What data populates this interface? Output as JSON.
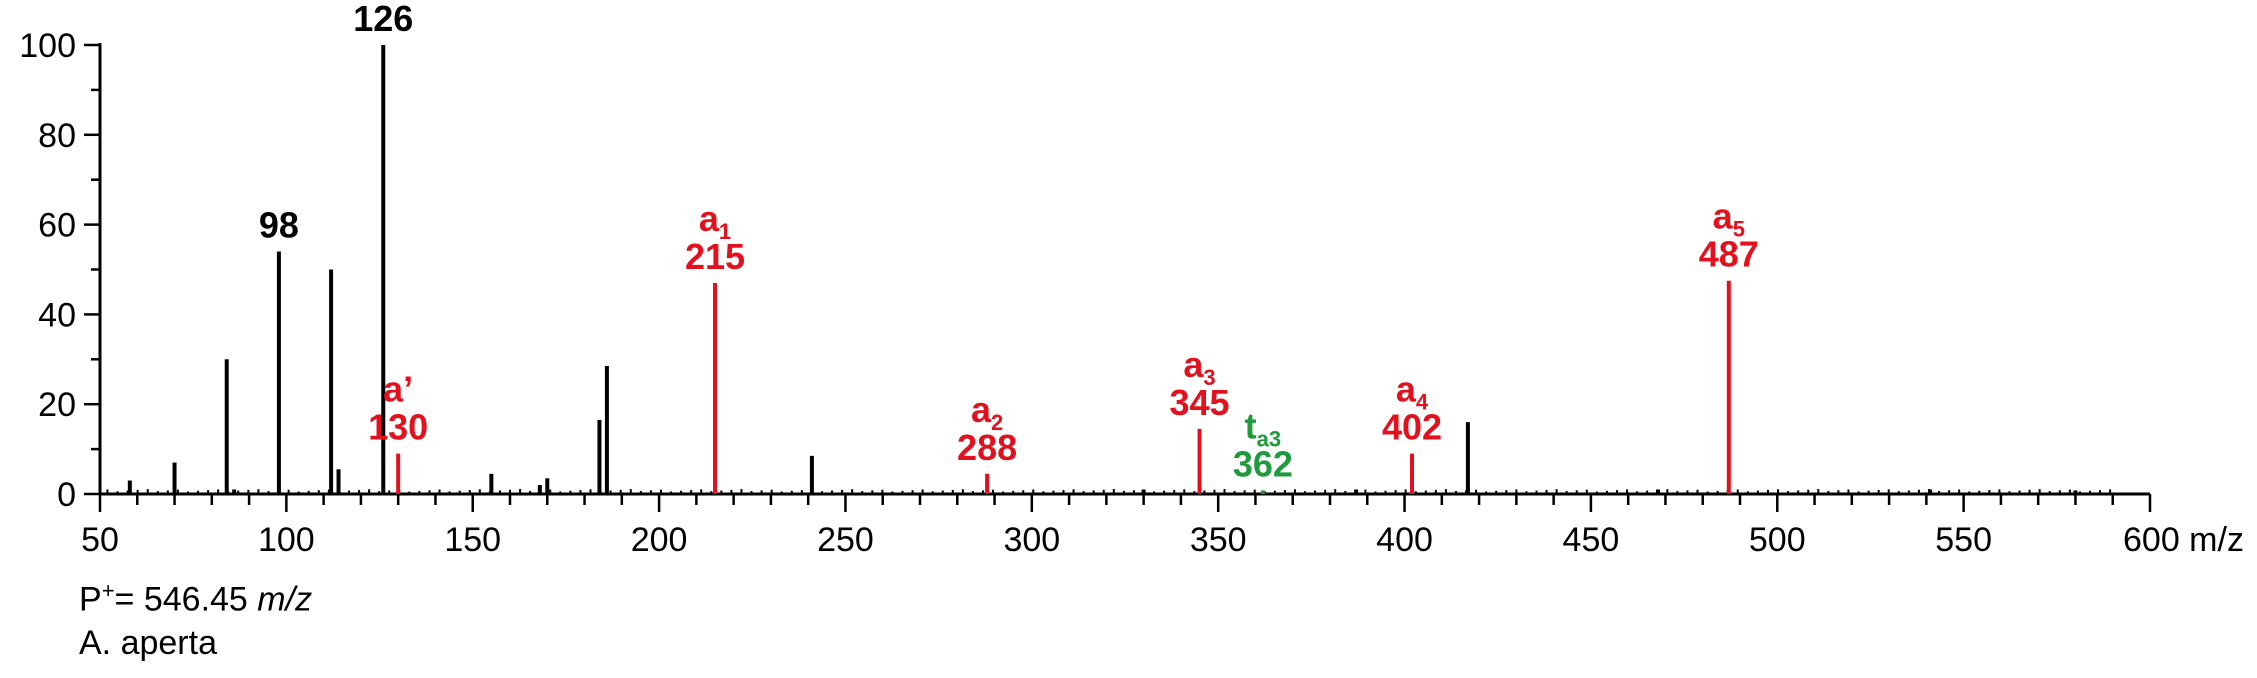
{
  "chart_data": {
    "type": "bar",
    "xlim": [
      50,
      600
    ],
    "ylim": [
      0,
      100
    ],
    "x_ticks": [
      50,
      100,
      150,
      200,
      250,
      300,
      350,
      400,
      450,
      500,
      550,
      600
    ],
    "x_tick_labels": [
      "50",
      "100",
      "150",
      "200",
      "250",
      "300",
      "350",
      "400",
      "450",
      "500",
      "550",
      "600 m/z"
    ],
    "y_ticks": [
      0,
      20,
      40,
      60,
      80,
      100
    ],
    "y_tick_labels": [
      "0",
      "20",
      "40",
      "60",
      "80",
      "100"
    ],
    "grid": false,
    "colors": {
      "black": "#000000",
      "red": "#e3101e",
      "green": "#1f9a3c"
    },
    "series": [
      {
        "color": "black",
        "peaks": [
          {
            "x": 58,
            "y": 3
          },
          {
            "x": 70,
            "y": 7
          },
          {
            "x": 84,
            "y": 30
          },
          {
            "x": 86,
            "y": 1
          },
          {
            "x": 98,
            "y": 54
          },
          {
            "x": 112,
            "y": 50
          },
          {
            "x": 114,
            "y": 5.5
          },
          {
            "x": 126,
            "y": 100
          },
          {
            "x": 155,
            "y": 4.5
          },
          {
            "x": 168,
            "y": 2
          },
          {
            "x": 170,
            "y": 3.5
          },
          {
            "x": 184,
            "y": 16.5
          },
          {
            "x": 186,
            "y": 28.5
          },
          {
            "x": 241,
            "y": 8.5
          },
          {
            "x": 330,
            "y": 1
          },
          {
            "x": 387,
            "y": 1
          },
          {
            "x": 417,
            "y": 16
          },
          {
            "x": 468,
            "y": 1
          },
          {
            "x": 541,
            "y": 1
          },
          {
            "x": 580,
            "y": 0.8
          }
        ]
      },
      {
        "color": "red",
        "peaks": [
          {
            "x": 130,
            "y": 9
          },
          {
            "x": 215,
            "y": 47
          },
          {
            "x": 288,
            "y": 4.5
          },
          {
            "x": 345,
            "y": 14.5
          },
          {
            "x": 402,
            "y": 9
          },
          {
            "x": 487,
            "y": 47.5
          }
        ]
      },
      {
        "color": "green",
        "peaks": [
          {
            "x": 362,
            "y": 0.8
          }
        ]
      }
    ],
    "annotations": [
      {
        "x": 98,
        "y": 54,
        "color": "black",
        "lines": [
          {
            "text": "98"
          }
        ]
      },
      {
        "x": 126,
        "y": 100,
        "color": "black",
        "lines": [
          {
            "text": "126"
          }
        ]
      },
      {
        "x": 130,
        "y": 9,
        "color": "red",
        "lines": [
          {
            "text": "a’"
          },
          {
            "text": "130"
          }
        ]
      },
      {
        "x": 215,
        "y": 47,
        "color": "red",
        "lines": [
          {
            "text": "a",
            "sub": "1"
          },
          {
            "text": "215"
          }
        ]
      },
      {
        "x": 288,
        "y": 4.5,
        "color": "red",
        "lines": [
          {
            "text": "a",
            "sub": "2"
          },
          {
            "text": "288"
          }
        ]
      },
      {
        "x": 345,
        "y": 14.5,
        "color": "red",
        "lines": [
          {
            "text": "a",
            "sub": "3"
          },
          {
            "text": "345"
          }
        ]
      },
      {
        "x": 362,
        "y": 0.8,
        "color": "green",
        "lines": [
          {
            "text": "t",
            "sub": "a3"
          },
          {
            "text": "362"
          }
        ]
      },
      {
        "x": 402,
        "y": 9,
        "color": "red",
        "lines": [
          {
            "text": "a",
            "sub": "4"
          },
          {
            "text": "402"
          }
        ]
      },
      {
        "x": 487,
        "y": 47.5,
        "color": "red",
        "lines": [
          {
            "text": "a",
            "sub": "5"
          },
          {
            "text": "487"
          }
        ]
      }
    ]
  },
  "footer": {
    "precursor_prefix": "P",
    "precursor_sup": "+",
    "precursor_value": "= 546.45 ",
    "precursor_unit": "m/z",
    "species": "A. aperta"
  }
}
